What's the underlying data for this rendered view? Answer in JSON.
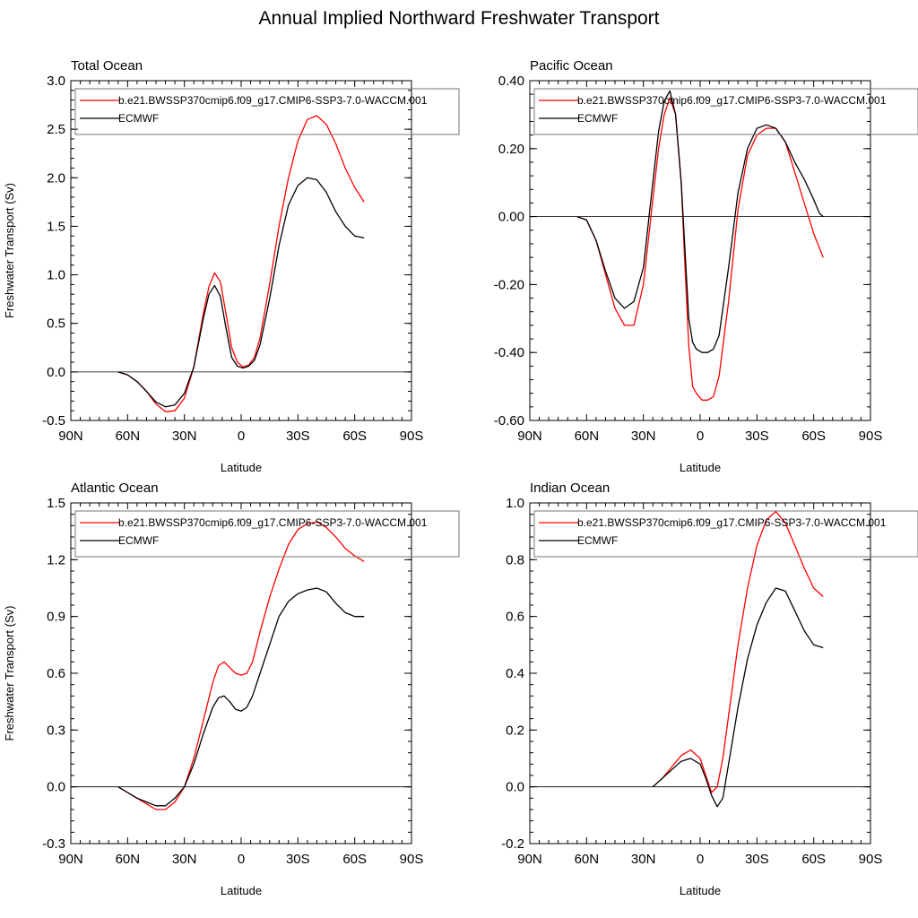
{
  "figure": {
    "title": "Annual Implied Northward Freshwater Transport"
  },
  "colors": {
    "model": "#ff0000",
    "obs": "#000000",
    "frame": "#000000",
    "zero_line": "#000000"
  },
  "chart_data": [
    {
      "type": "line",
      "title": "Total Ocean",
      "xlabel": "Latitude",
      "ylabel": "Freshwater Transport (Sv)",
      "xlim": [
        90,
        -90
      ],
      "ylim": [
        -0.5,
        3.0
      ],
      "x_ticks": [
        90,
        60,
        30,
        0,
        -30,
        -60,
        -90
      ],
      "x_tick_labels": [
        "90N",
        "60N",
        "30N",
        "0",
        "30S",
        "60S",
        "90S"
      ],
      "y_ticks": [
        -0.5,
        0.0,
        0.5,
        1.0,
        1.5,
        2.0,
        2.5,
        3.0
      ],
      "y_tick_labels": [
        "-0.5",
        "0.0",
        "0.5",
        "1.0",
        "1.5",
        "2.0",
        "2.5",
        "3.0"
      ],
      "y_minor": 0.1,
      "legend": "top-right",
      "series": [
        {
          "name": "b.e21.BWSSP370cmip6.f09_g17.CMIP6-SSP3-7.0-WACCM.001",
          "color": "#ff0000",
          "x": [
            65,
            60,
            55,
            50,
            45,
            40,
            35,
            30,
            25,
            20,
            17,
            14,
            11,
            8,
            5,
            2,
            -1,
            -4,
            -7,
            -10,
            -15,
            -20,
            -25,
            -30,
            -35,
            -40,
            -45,
            -50,
            -55,
            -60,
            -65
          ],
          "y": [
            0.0,
            -0.03,
            -0.1,
            -0.2,
            -0.33,
            -0.41,
            -0.4,
            -0.27,
            0.05,
            0.6,
            0.88,
            1.02,
            0.93,
            0.6,
            0.25,
            0.1,
            0.05,
            0.07,
            0.15,
            0.35,
            0.9,
            1.5,
            2.0,
            2.38,
            2.6,
            2.64,
            2.55,
            2.35,
            2.1,
            1.9,
            1.75
          ]
        },
        {
          "name": "ECMWF",
          "color": "#000000",
          "x": [
            65,
            60,
            55,
            50,
            45,
            40,
            35,
            30,
            25,
            20,
            17,
            14,
            11,
            8,
            5,
            2,
            -1,
            -4,
            -7,
            -10,
            -15,
            -20,
            -25,
            -30,
            -35,
            -40,
            -45,
            -50,
            -55,
            -60,
            -65
          ],
          "y": [
            0.0,
            -0.03,
            -0.1,
            -0.2,
            -0.31,
            -0.36,
            -0.34,
            -0.22,
            0.05,
            0.55,
            0.8,
            0.89,
            0.78,
            0.45,
            0.15,
            0.06,
            0.04,
            0.06,
            0.12,
            0.28,
            0.75,
            1.3,
            1.72,
            1.92,
            2.0,
            1.98,
            1.85,
            1.65,
            1.5,
            1.4,
            1.38
          ]
        }
      ]
    },
    {
      "type": "line",
      "title": "Pacific Ocean",
      "xlabel": "Latitude",
      "ylabel": "",
      "xlim": [
        90,
        -90
      ],
      "ylim": [
        -0.6,
        0.4
      ],
      "x_ticks": [
        90,
        60,
        30,
        0,
        -30,
        -60,
        -90
      ],
      "x_tick_labels": [
        "90N",
        "60N",
        "30N",
        "0",
        "30S",
        "60S",
        "90S"
      ],
      "y_ticks": [
        -0.6,
        -0.4,
        -0.2,
        0.0,
        0.2,
        0.4
      ],
      "y_tick_labels": [
        "-0.60",
        "-0.40",
        "-0.20",
        "0.00",
        "0.20",
        "0.40"
      ],
      "y_minor": 0.04,
      "legend": "top-right",
      "series": [
        {
          "name": "b.e21.BWSSP370cmip6.f09_g17.CMIP6-SSP3-7.0-WACCM.001",
          "color": "#ff0000",
          "x": [
            65,
            60,
            55,
            50,
            45,
            40,
            35,
            30,
            25,
            22,
            19,
            16,
            13,
            10,
            8,
            6,
            4,
            2,
            -1,
            -4,
            -7,
            -10,
            -15,
            -20,
            -25,
            -30,
            -35,
            -40,
            -45,
            -50,
            -55,
            -60,
            -65
          ],
          "y": [
            0.0,
            -0.01,
            -0.07,
            -0.17,
            -0.27,
            -0.32,
            -0.32,
            -0.2,
            0.05,
            0.2,
            0.3,
            0.35,
            0.3,
            0.1,
            -0.15,
            -0.38,
            -0.5,
            -0.52,
            -0.54,
            -0.54,
            -0.53,
            -0.47,
            -0.25,
            0.02,
            0.18,
            0.24,
            0.26,
            0.26,
            0.22,
            0.13,
            0.04,
            -0.05,
            -0.12
          ]
        },
        {
          "name": "ECMWF",
          "color": "#000000",
          "x": [
            65,
            60,
            55,
            50,
            45,
            40,
            35,
            30,
            25,
            22,
            19,
            16,
            13,
            10,
            8,
            6,
            4,
            2,
            -1,
            -4,
            -7,
            -10,
            -15,
            -20,
            -25,
            -30,
            -35,
            -40,
            -45,
            -50,
            -55,
            -60,
            -63,
            -65
          ],
          "y": [
            0.0,
            -0.01,
            -0.07,
            -0.16,
            -0.24,
            -0.27,
            -0.25,
            -0.15,
            0.1,
            0.25,
            0.34,
            0.37,
            0.3,
            0.1,
            -0.1,
            -0.3,
            -0.37,
            -0.39,
            -0.4,
            -0.4,
            -0.39,
            -0.35,
            -0.15,
            0.07,
            0.2,
            0.26,
            0.27,
            0.26,
            0.22,
            0.16,
            0.11,
            0.05,
            0.01,
            0.0
          ]
        }
      ]
    },
    {
      "type": "line",
      "title": "Atlantic Ocean",
      "xlabel": "Latitude",
      "ylabel": "Freshwater Transport (Sv)",
      "xlim": [
        90,
        -90
      ],
      "ylim": [
        -0.3,
        1.5
      ],
      "x_ticks": [
        90,
        60,
        30,
        0,
        -30,
        -60,
        -90
      ],
      "x_tick_labels": [
        "90N",
        "60N",
        "30N",
        "0",
        "30S",
        "60S",
        "90S"
      ],
      "y_ticks": [
        -0.3,
        0.0,
        0.3,
        0.6,
        0.9,
        1.2,
        1.5
      ],
      "y_tick_labels": [
        "-0.3",
        "0.0",
        "0.3",
        "0.6",
        "0.9",
        "1.2",
        "1.5"
      ],
      "y_minor": 0.06,
      "legend": "top-right",
      "series": [
        {
          "name": "b.e21.BWSSP370cmip6.f09_g17.CMIP6-SSP3-7.0-WACCM.001",
          "color": "#ff0000",
          "x": [
            65,
            60,
            55,
            50,
            45,
            40,
            35,
            30,
            25,
            20,
            15,
            12,
            9,
            6,
            3,
            0,
            -3,
            -6,
            -10,
            -15,
            -20,
            -25,
            -30,
            -35,
            -40,
            -45,
            -50,
            -55,
            -60,
            -65
          ],
          "y": [
            0.0,
            -0.03,
            -0.06,
            -0.09,
            -0.12,
            -0.12,
            -0.08,
            0.0,
            0.15,
            0.35,
            0.55,
            0.64,
            0.66,
            0.63,
            0.6,
            0.59,
            0.6,
            0.66,
            0.82,
            1.0,
            1.15,
            1.28,
            1.36,
            1.39,
            1.4,
            1.37,
            1.32,
            1.26,
            1.22,
            1.19
          ]
        },
        {
          "name": "ECMWF",
          "color": "#000000",
          "x": [
            65,
            60,
            55,
            50,
            45,
            40,
            35,
            30,
            25,
            20,
            15,
            12,
            9,
            6,
            3,
            0,
            -3,
            -6,
            -10,
            -15,
            -20,
            -25,
            -30,
            -35,
            -40,
            -45,
            -50,
            -55,
            -60,
            -65
          ],
          "y": [
            0.0,
            -0.03,
            -0.06,
            -0.08,
            -0.1,
            -0.1,
            -0.06,
            0.0,
            0.12,
            0.28,
            0.42,
            0.47,
            0.48,
            0.45,
            0.41,
            0.4,
            0.42,
            0.48,
            0.6,
            0.75,
            0.9,
            0.98,
            1.02,
            1.04,
            1.05,
            1.03,
            0.97,
            0.92,
            0.9,
            0.9
          ]
        }
      ]
    },
    {
      "type": "line",
      "title": "Indian Ocean",
      "xlabel": "Latitude",
      "ylabel": "",
      "xlim": [
        90,
        -90
      ],
      "ylim": [
        -0.2,
        1.0
      ],
      "x_ticks": [
        90,
        60,
        30,
        0,
        -30,
        -60,
        -90
      ],
      "x_tick_labels": [
        "90N",
        "60N",
        "30N",
        "0",
        "30S",
        "60S",
        "90S"
      ],
      "y_ticks": [
        -0.2,
        0.0,
        0.2,
        0.4,
        0.6,
        0.8,
        1.0
      ],
      "y_tick_labels": [
        "-0.2",
        "0.0",
        "0.2",
        "0.4",
        "0.6",
        "0.8",
        "1.0"
      ],
      "y_minor": 0.04,
      "legend": "top-right",
      "series": [
        {
          "name": "b.e21.BWSSP370cmip6.f09_g17.CMIP6-SSP3-7.0-WACCM.001",
          "color": "#ff0000",
          "x": [
            25,
            20,
            15,
            10,
            5,
            0,
            -3,
            -6,
            -9,
            -12,
            -15,
            -20,
            -25,
            -30,
            -35,
            -40,
            -45,
            -50,
            -55,
            -60,
            -65
          ],
          "y": [
            0.0,
            0.03,
            0.07,
            0.11,
            0.13,
            0.1,
            0.04,
            -0.02,
            0.0,
            0.1,
            0.25,
            0.5,
            0.7,
            0.85,
            0.94,
            0.97,
            0.93,
            0.85,
            0.77,
            0.7,
            0.67
          ]
        },
        {
          "name": "ECMWF",
          "color": "#000000",
          "x": [
            25,
            20,
            15,
            10,
            5,
            0,
            -3,
            -6,
            -9,
            -12,
            -15,
            -20,
            -25,
            -30,
            -35,
            -40,
            -45,
            -50,
            -55,
            -60,
            -65
          ],
          "y": [
            0.0,
            0.03,
            0.06,
            0.09,
            0.1,
            0.08,
            0.03,
            -0.03,
            -0.07,
            -0.04,
            0.08,
            0.28,
            0.45,
            0.57,
            0.65,
            0.7,
            0.69,
            0.62,
            0.55,
            0.5,
            0.49
          ]
        }
      ]
    }
  ]
}
